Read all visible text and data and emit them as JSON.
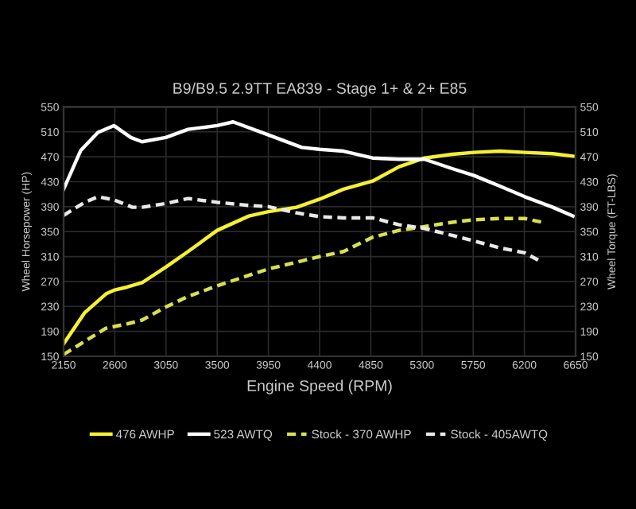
{
  "chart_data": {
    "type": "line",
    "title": "B9/B9.5 2.9TT EA839 - Stage 1+ & 2+ E85",
    "xlabel": "Engine Speed (RPM)",
    "ylabel": "Wheel Horsepower (HP)",
    "y2label": "Wheel Torque (FT-LBS)",
    "xlim": [
      2150,
      6650
    ],
    "xticks": [
      2150,
      2600,
      3050,
      3500,
      3950,
      4400,
      4850,
      5300,
      5750,
      6200,
      6650
    ],
    "ylim": [
      150,
      550
    ],
    "yticks": [
      150,
      190,
      230,
      270,
      310,
      350,
      390,
      430,
      470,
      510,
      550
    ],
    "y2lim": [
      150,
      550
    ],
    "y2ticks": [
      150,
      190,
      230,
      270,
      310,
      350,
      390,
      430,
      470,
      510,
      550
    ],
    "grid": true,
    "legend": "bottom",
    "marker": "none",
    "series": [
      {
        "name": "476 AWHP",
        "color": "#f5f032",
        "line_style": "solid",
        "x": [
          2150,
          2336,
          2522,
          2592,
          2708,
          2839,
          3048,
          3244,
          3500,
          3779,
          3950,
          4198,
          4400,
          4610,
          4866,
          5099,
          5322,
          5565,
          5756,
          5984,
          6203,
          6450,
          6627
        ],
        "values": [
          170,
          220,
          250,
          256,
          261,
          268,
          293,
          318,
          352,
          375,
          382,
          389,
          402,
          418,
          431,
          454,
          468,
          474,
          477,
          479,
          477,
          475,
          471
        ]
      },
      {
        "name": "523 AWTQ",
        "color": "#ffffff",
        "line_style": "solid",
        "axis": "y2",
        "x": [
          2150,
          2300,
          2452,
          2592,
          2741,
          2839,
          3048,
          3244,
          3500,
          3640,
          3950,
          4244,
          4400,
          4610,
          4866,
          5099,
          5322,
          5565,
          5756,
          5984,
          6203,
          6450,
          6627
        ],
        "values": [
          418,
          480,
          509,
          520,
          501,
          494,
          501,
          514,
          520,
          526,
          505,
          485,
          482,
          479,
          468,
          466,
          466,
          451,
          440,
          423,
          406,
          389,
          375
        ]
      },
      {
        "name": "Stock - 370 AWHP",
        "color": "#d8e050",
        "line_style": "dashed",
        "x": [
          2150,
          2336,
          2522,
          2708,
          2839,
          3048,
          3244,
          3500,
          3779,
          3950,
          4198,
          4400,
          4610,
          4866,
          5099,
          5322,
          5565,
          5756,
          5984,
          6203,
          6356
        ],
        "values": [
          153,
          174,
          195,
          202,
          208,
          229,
          246,
          263,
          280,
          290,
          301,
          310,
          318,
          341,
          352,
          358,
          365,
          369,
          371,
          371,
          365
        ]
      },
      {
        "name": "Stock - 405AWTQ",
        "color": "#e8e8e8",
        "line_style": "dashed",
        "axis": "y2",
        "x": [
          2150,
          2336,
          2452,
          2592,
          2755,
          2839,
          3048,
          3244,
          3500,
          3779,
          3950,
          4198,
          4400,
          4610,
          4866,
          5099,
          5322,
          5565,
          5756,
          5984,
          6203,
          6356
        ],
        "values": [
          376,
          397,
          406,
          401,
          389,
          389,
          395,
          403,
          397,
          392,
          390,
          380,
          374,
          372,
          372,
          361,
          355,
          344,
          335,
          324,
          316,
          301
        ]
      }
    ]
  }
}
